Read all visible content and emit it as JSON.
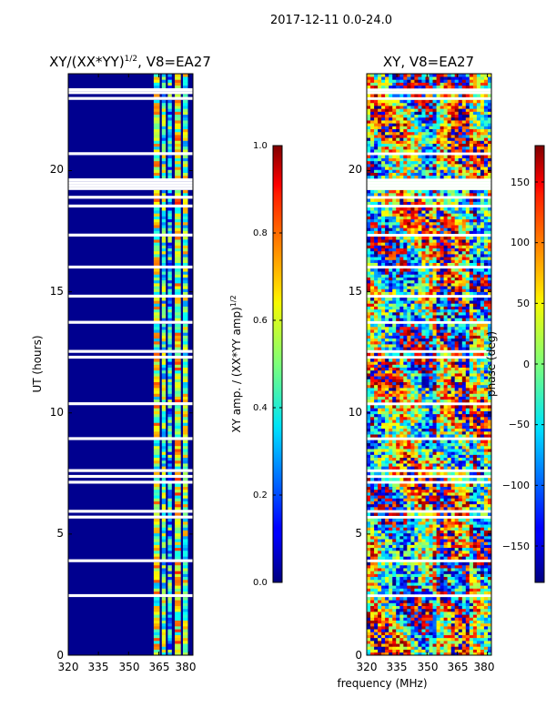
{
  "figure": {
    "suptitle": "2017-12-11 0.0-24.0",
    "xlabel_shared": "frequency (MHz)"
  },
  "chart_data": [
    {
      "type": "heatmap",
      "title_main": "XY/(XX*YY)",
      "title_exp": "1/2",
      "title_tail": ", V8=EA27",
      "ylabel": "UT (hours)",
      "xlim": [
        320,
        382
      ],
      "ylim": [
        0,
        24
      ],
      "xticks": [
        "320",
        "335",
        "350",
        "365",
        "380"
      ],
      "xtick_values": [
        320,
        335,
        350,
        365,
        380
      ],
      "yticks": [
        "0",
        "5",
        "10",
        "15",
        "20"
      ],
      "ytick_values": [
        0,
        5,
        10,
        15,
        20
      ],
      "colorbar": {
        "label_main": "XY amp. / (XX*YY amp)",
        "label_exp": "1/2",
        "range": [
          0.0,
          1.0
        ],
        "ticks": [
          "0.0",
          "0.2",
          "0.4",
          "0.6",
          "0.8",
          "1.0"
        ],
        "tick_values": [
          0.0,
          0.2,
          0.4,
          0.6,
          0.8,
          1.0
        ]
      }
    },
    {
      "type": "heatmap",
      "title": "XY, V8=EA27",
      "xlim": [
        320,
        382
      ],
      "ylim": [
        0,
        24
      ],
      "xticks": [
        "320",
        "335",
        "350",
        "365",
        "380"
      ],
      "xtick_values": [
        320,
        335,
        350,
        365,
        380
      ],
      "yticks": [
        "0",
        "5",
        "10",
        "15",
        "20"
      ],
      "ytick_values": [
        0,
        5,
        10,
        15,
        20
      ],
      "colorbar": {
        "label": "phase (deg)",
        "range": [
          -180,
          180
        ],
        "ticks": [
          "−150",
          "−100",
          "−50",
          "0",
          "50",
          "100",
          "150"
        ],
        "tick_values": [
          -150,
          -100,
          -50,
          0,
          50,
          100,
          150
        ]
      }
    }
  ]
}
